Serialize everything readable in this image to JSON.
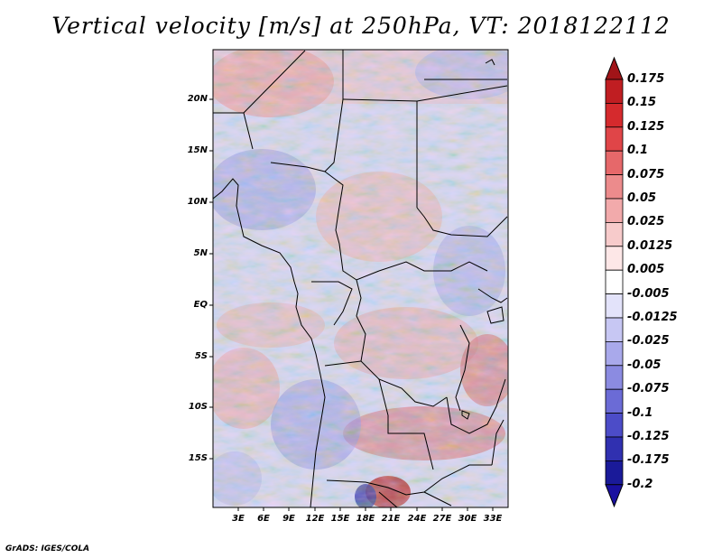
{
  "title": "Vertical velocity [m/s] at 250hPa, VT: 2018122112",
  "footer": "GrADS: IGES/COLA",
  "map": {
    "lat_labels": [
      "20N",
      "15N",
      "10N",
      "5N",
      "EQ",
      "5S",
      "10S",
      "15S"
    ],
    "lon_labels": [
      "3E",
      "6E",
      "9E",
      "12E",
      "15E",
      "18E",
      "21E",
      "24E",
      "27E",
      "30E",
      "33E"
    ],
    "lat_range": [
      -19.5,
      24.5
    ],
    "lon_range": [
      0,
      34.5
    ]
  },
  "colorbar": {
    "levels": [
      "0.175",
      "0.15",
      "0.125",
      "0.1",
      "0.075",
      "0.05",
      "0.025",
      "0.0125",
      "0.005",
      "-0.005",
      "-0.0125",
      "-0.025",
      "-0.05",
      "-0.075",
      "-0.1",
      "-0.125",
      "-0.175",
      "-0.2"
    ],
    "colors": [
      "#a11418",
      "#c01e22",
      "#d52a2d",
      "#e04548",
      "#e6686a",
      "#ec8b8c",
      "#f2aaab",
      "#f7cbcb",
      "#fde7e7",
      "#ffffff",
      "#e3e3fa",
      "#c7c7f3",
      "#a9a9eb",
      "#8b8be1",
      "#6b6bd6",
      "#4c4cc8",
      "#3030b0",
      "#1a1a99",
      "#0d0d80"
    ],
    "upper_arrow_color": "#a11418",
    "lower_arrow_color": "#1a10a0"
  }
}
